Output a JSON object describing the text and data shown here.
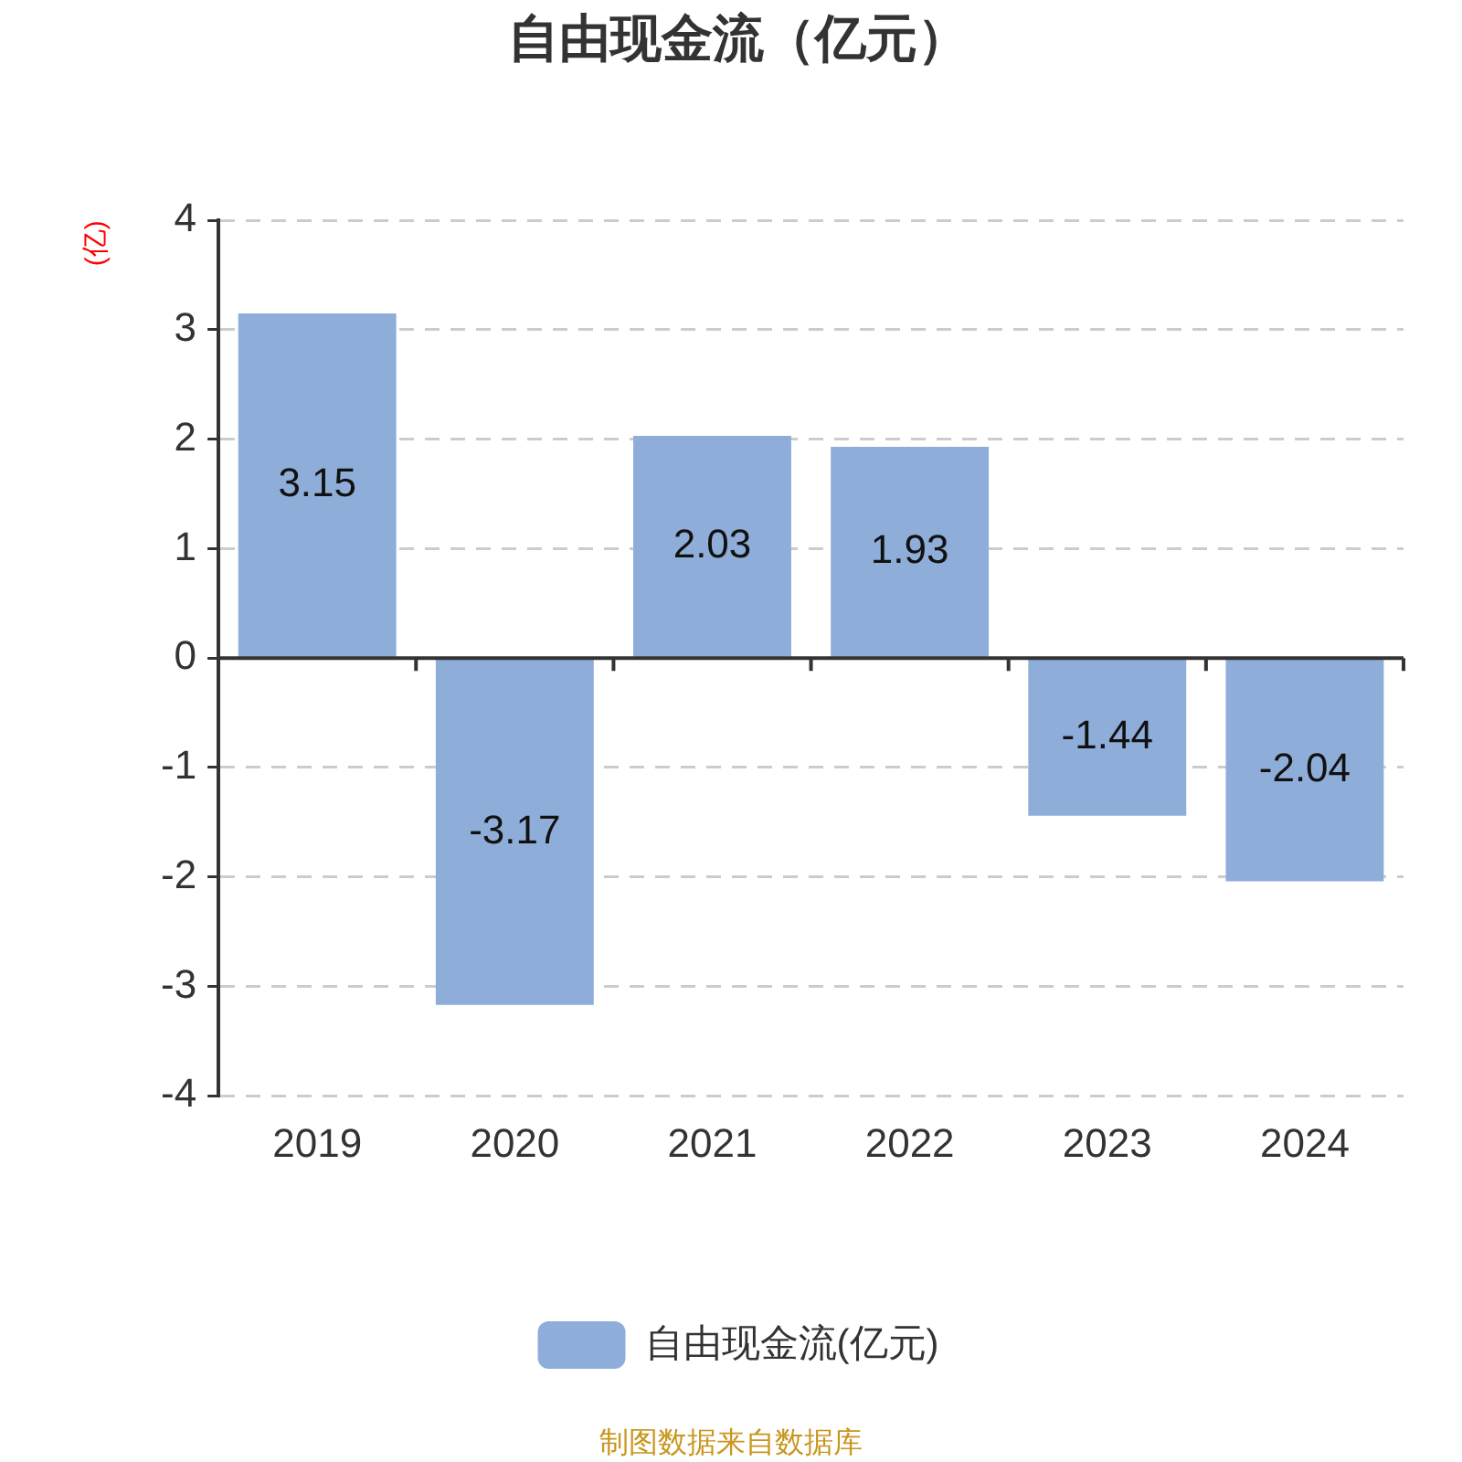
{
  "chart_data": {
    "type": "bar",
    "title": "自由现金流（亿元）",
    "ylabel": "(亿)",
    "categories": [
      "2019",
      "2020",
      "2021",
      "2022",
      "2023",
      "2024"
    ],
    "series": [
      {
        "name": "自由现金流(亿元)",
        "color": "#8eaed9",
        "values": [
          3.15,
          -3.17,
          2.03,
          1.93,
          -1.44,
          -2.04
        ]
      }
    ],
    "ylim": [
      -4,
      4
    ],
    "yticks": [
      -4,
      -3,
      -2,
      -1,
      0,
      1,
      2,
      3,
      4
    ],
    "grid": "y",
    "legend": "bottom",
    "data_labels": true,
    "annotations": [
      "制图数据来自数据库"
    ]
  }
}
